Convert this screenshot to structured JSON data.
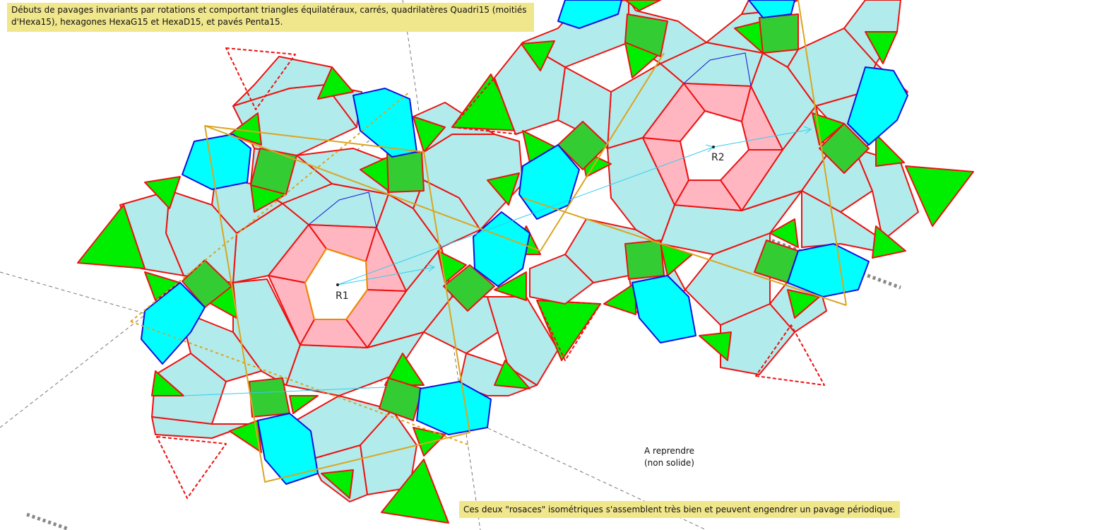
{
  "title_note": "Débuts de pavages invariants par rotations et comportant triangles équilatéraux, carrés, quadrilatères Quadri15 (moitiés d'Hexa15), hexagones HexaG15 et HexaD15, et pavés Penta15.",
  "bottom_note": "Ces deux \"rosaces\" isométriques s'assemblent très bien et peuvent engendrer un pavage périodique.",
  "redo_note": {
    "line1": "A reprendre",
    "line2": "(non solide)"
  },
  "rosettes": [
    {
      "label": "R1"
    },
    {
      "label": "R2"
    }
  ],
  "colors": {
    "penta": "#b2ebeb",
    "triangle": "#00ee00",
    "square": "#33cc33",
    "hexagon": "#00ffff",
    "quadri": "#ffb6c1",
    "edge": "#ee1111",
    "hex_edge": "#1010dd",
    "guide": "#daa520",
    "arrow": "#33ccee"
  }
}
